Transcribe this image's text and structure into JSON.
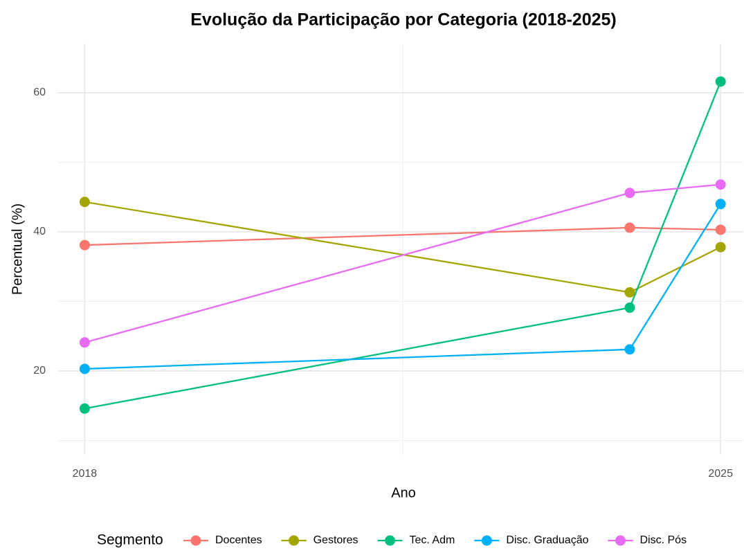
{
  "chart_data": {
    "type": "line",
    "title": "Evolução da Participação por Categoria (2018-2025)",
    "x_label": "Ano",
    "y_label": "Percentual (%)",
    "legend_title": "Segmento",
    "x": [
      2018,
      2024,
      2025
    ],
    "xlim": [
      2017.7,
      2025.25
    ],
    "xticks": [
      2018,
      2025
    ],
    "ylim": [
      8,
      67
    ],
    "yticks": [
      20,
      40,
      60
    ],
    "grid": true,
    "legend_position": "bottom",
    "series": [
      {
        "name": "Docentes",
        "color": "#F8766D",
        "values": [
          38.1,
          40.6,
          40.3
        ]
      },
      {
        "name": "Gestores",
        "color": "#A3A500",
        "values": [
          44.3,
          31.3,
          37.8
        ]
      },
      {
        "name": "Tec. Adm",
        "color": "#00BF7D",
        "values": [
          14.6,
          29.1,
          61.6
        ]
      },
      {
        "name": "Disc. Graduação",
        "color": "#00B0F6",
        "values": [
          20.3,
          23.1,
          44.0
        ]
      },
      {
        "name": "Disc. Pós",
        "color": "#E76BF3",
        "values": [
          24.1,
          45.6,
          46.8
        ]
      }
    ]
  }
}
